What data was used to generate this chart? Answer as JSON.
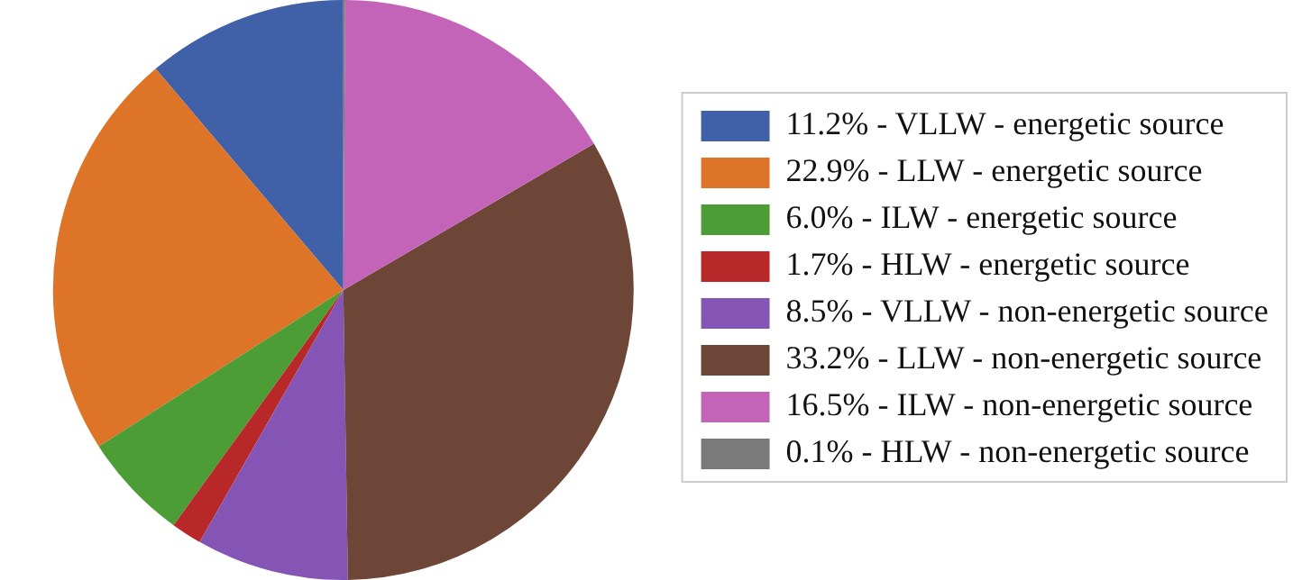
{
  "chart_data": {
    "type": "pie",
    "categories": [
      "11.2% - VLLW - energetic source",
      "22.9% - LLW - energetic source",
      "6.0% - ILW - energetic source",
      "1.7% - HLW - energetic source",
      "8.5% - VLLW - non-energetic source",
      "33.2% - LLW - non-energetic source",
      "16.5% - ILW - non-energetic source",
      "0.1% - HLW - non-energetic source"
    ],
    "values": [
      11.2,
      22.9,
      6.0,
      1.7,
      8.5,
      33.2,
      16.5,
      0.1
    ],
    "colors": [
      "#4061a8",
      "#dd7427",
      "#4c9d35",
      "#b92828",
      "#8455b4",
      "#6e4638",
      "#c464b8",
      "#7a7a7a"
    ],
    "legend": "right"
  }
}
